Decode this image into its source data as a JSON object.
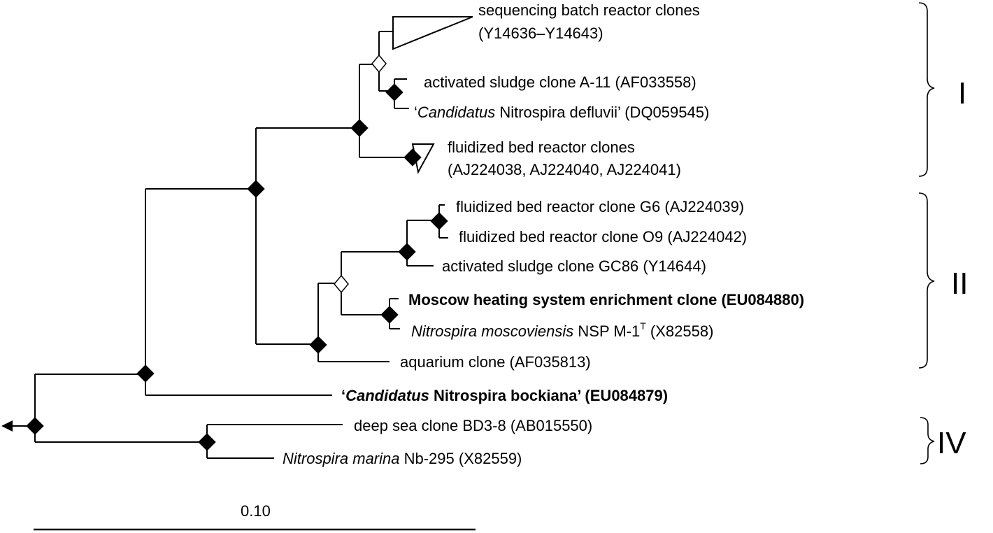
{
  "taxa": [
    {
      "id": "sbr",
      "line1": "sequencing batch reactor clones",
      "line2": "(Y14636–Y14643)"
    },
    {
      "id": "a11",
      "text": "activated sludge clone A-11 (AF033558)"
    },
    {
      "id": "defluvii",
      "quote_open": "‘",
      "italic": "Candidatus",
      "rest": " Nitrospira defluvii’ (DQ059545)"
    },
    {
      "id": "fbr",
      "line1": "fluidized bed reactor clones",
      "line2": "(AJ224038, AJ224040, AJ224041)"
    },
    {
      "id": "g6",
      "text": "fluidized bed reactor clone G6 (AJ224039)"
    },
    {
      "id": "o9",
      "text": "fluidized bed reactor clone O9 (AJ224042)"
    },
    {
      "id": "gc86",
      "text": "activated sludge clone GC86 (Y14644)"
    },
    {
      "id": "moscow",
      "text": "Moscow heating system enrichment clone (EU084880)",
      "bold": true
    },
    {
      "id": "moscoviensis",
      "italic": "Nitrospira moscoviensis",
      "rest": " NSP M-1",
      "sup": "T",
      "tail": " (X82558)"
    },
    {
      "id": "aquarium",
      "text": "aquarium clone (AF035813)"
    },
    {
      "id": "bockiana",
      "quote_open": "‘",
      "italic": "Candidatus",
      "rest": " Nitrospira bockiana’ (EU084879)",
      "bold": true
    },
    {
      "id": "bd38",
      "text": "deep sea clone BD3-8 (AB015550)"
    },
    {
      "id": "marina",
      "italic": "Nitrospira marina",
      "rest": " Nb-295 (X82559)"
    }
  ],
  "clusters": [
    {
      "id": "I",
      "label": "I"
    },
    {
      "id": "II",
      "label": "II"
    },
    {
      "id": "IV",
      "label": "IV"
    }
  ],
  "scale_bar": {
    "label": "0.10"
  }
}
